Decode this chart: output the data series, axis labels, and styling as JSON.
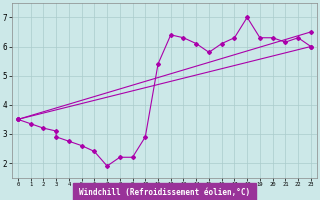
{
  "bg_color": "#cce8e8",
  "line_color": "#aa00aa",
  "grid_color": "#aacccc",
  "xlabel": "Windchill (Refroidissement éolien,°C)",
  "xlabel_bg": "#993399",
  "xlabel_fg": "#ffffff",
  "xlim": [
    -0.5,
    23.5
  ],
  "ylim": [
    1.5,
    7.5
  ],
  "xticks": [
    0,
    1,
    2,
    3,
    4,
    5,
    6,
    7,
    8,
    9,
    10,
    11,
    12,
    13,
    14,
    15,
    16,
    17,
    18,
    19,
    20,
    21,
    22,
    23
  ],
  "yticks": [
    2,
    3,
    4,
    5,
    6,
    7
  ],
  "line1_x": [
    0,
    1,
    2,
    3,
    3,
    4,
    5,
    6,
    7,
    8,
    9,
    10,
    11,
    12,
    13,
    14,
    15,
    16,
    17,
    18,
    19,
    20,
    21,
    22,
    23
  ],
  "line1_y": [
    3.5,
    3.35,
    3.2,
    3.1,
    2.9,
    2.75,
    2.6,
    2.4,
    1.9,
    2.2,
    2.2,
    2.9,
    5.4,
    6.4,
    6.3,
    6.1,
    5.8,
    6.1,
    6.3,
    7.0,
    6.3,
    6.3,
    6.15,
    6.3,
    6.0
  ],
  "line2_x": [
    0,
    23
  ],
  "line2_y": [
    3.5,
    6.5
  ],
  "line3_x": [
    0,
    23
  ],
  "line3_y": [
    3.5,
    6.0
  ],
  "marker_size": 2.0,
  "linewidth": 0.8
}
